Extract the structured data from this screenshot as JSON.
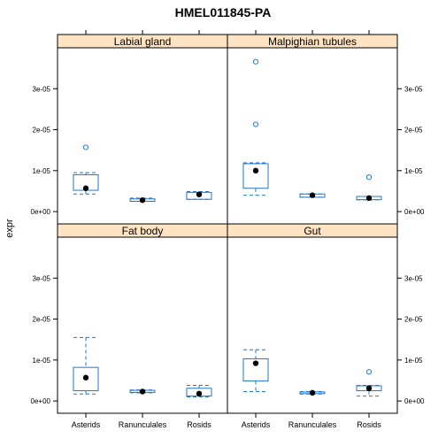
{
  "chart_data": {
    "type": "box",
    "title": "HMEL011845-PA",
    "xlabel": "",
    "ylabel": "expr",
    "categories": [
      "Asterids",
      "Ranunculales",
      "Rosids"
    ],
    "y_tick_labels": [
      "0e+00",
      "1e-05",
      "2e-05",
      "3e-05"
    ],
    "y_ticks": [
      0,
      1e-05,
      2e-05,
      3e-05
    ],
    "ylim": [
      -3e-06,
      4e-05
    ],
    "colors": {
      "box": "#1f77d4",
      "strip": "#ffe4c4",
      "median": "#000000",
      "outlier": "#1f77d4"
    },
    "panels": [
      {
        "name": "Labial gland",
        "boxes": [
          {
            "category": "Asterids",
            "whisker_low": 4.3e-06,
            "q1": 5.2e-06,
            "q3": 9e-06,
            "whisker_high": 9.5e-06,
            "median": 5.7e-06,
            "outliers": [
              1.57e-05
            ]
          },
          {
            "category": "Ranunculales",
            "whisker_low": 2.5e-06,
            "q1": 2.5e-06,
            "q3": 3.1e-06,
            "whisker_high": 3.3e-06,
            "median": 2.8e-06,
            "outliers": []
          },
          {
            "category": "Rosids",
            "whisker_low": 3e-06,
            "q1": 3e-06,
            "q3": 4.7e-06,
            "whisker_high": 4.9e-06,
            "median": 4.2e-06,
            "outliers": []
          }
        ]
      },
      {
        "name": "Malpighian tubules",
        "boxes": [
          {
            "category": "Asterids",
            "whisker_low": 4e-06,
            "q1": 5.7e-06,
            "q3": 1.17e-05,
            "whisker_high": 1.19e-05,
            "median": 1e-05,
            "outliers": [
              2.13e-05,
              3.66e-05
            ]
          },
          {
            "category": "Ranunculales",
            "whisker_low": 3.5e-06,
            "q1": 3.5e-06,
            "q3": 4.3e-06,
            "whisker_high": 4.3e-06,
            "median": 4e-06,
            "outliers": []
          },
          {
            "category": "Rosids",
            "whisker_low": 2.9e-06,
            "q1": 2.9e-06,
            "q3": 3.7e-06,
            "whisker_high": 3.7e-06,
            "median": 3.3e-06,
            "outliers": [
              8.4e-06
            ]
          }
        ]
      },
      {
        "name": "Fat body",
        "boxes": [
          {
            "category": "Asterids",
            "whisker_low": 1.7e-06,
            "q1": 2.5e-06,
            "q3": 8.2e-06,
            "whisker_high": 1.55e-05,
            "median": 5.7e-06,
            "outliers": []
          },
          {
            "category": "Ranunculales",
            "whisker_low": 2e-06,
            "q1": 2.1e-06,
            "q3": 2.6e-06,
            "whisker_high": 2.7e-06,
            "median": 2.3e-06,
            "outliers": []
          },
          {
            "category": "Rosids",
            "whisker_low": 1e-06,
            "q1": 1.2e-06,
            "q3": 3.1e-06,
            "whisker_high": 3.8e-06,
            "median": 1.8e-06,
            "outliers": []
          }
        ]
      },
      {
        "name": "Gut",
        "boxes": [
          {
            "category": "Asterids",
            "whisker_low": 2.3e-06,
            "q1": 4.9e-06,
            "q3": 1.03e-05,
            "whisker_high": 1.25e-05,
            "median": 9.2e-06,
            "outliers": []
          },
          {
            "category": "Ranunculales",
            "whisker_low": 1.7e-06,
            "q1": 1.8e-06,
            "q3": 2.2e-06,
            "whisker_high": 2.3e-06,
            "median": 2e-06,
            "outliers": []
          },
          {
            "category": "Rosids",
            "whisker_low": 1.2e-06,
            "q1": 2.5e-06,
            "q3": 3.7e-06,
            "whisker_high": 3.8e-06,
            "median": 3.1e-06,
            "outliers": [
              7.1e-06
            ]
          }
        ]
      }
    ]
  }
}
